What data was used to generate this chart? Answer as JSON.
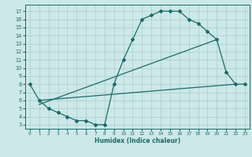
{
  "xlabel": "Humidex (Indice chaleur)",
  "bg_color": "#cce8e8",
  "grid_color": "#aacccc",
  "line_color": "#1a6b6b",
  "curve1_x": [
    0,
    1,
    2,
    3,
    4,
    5,
    6,
    7,
    8,
    9,
    10,
    11,
    12,
    13,
    14,
    15,
    16,
    17,
    18,
    19,
    20,
    21,
    22,
    23
  ],
  "curve1_y": [
    8,
    6,
    5,
    4.5,
    4,
    3.5,
    3.5,
    3,
    3,
    8,
    11,
    13.5,
    16,
    16.5,
    17,
    17,
    17,
    16,
    15.5,
    14.5,
    13.5,
    9.5,
    8,
    8
  ],
  "curve2_x": [
    1,
    22
  ],
  "curve2_y": [
    6,
    8
  ],
  "curve3_x": [
    1,
    20
  ],
  "curve3_y": [
    5.5,
    13.5
  ],
  "xlim": [
    -0.5,
    23.5
  ],
  "ylim": [
    2.5,
    17.8
  ],
  "yticks": [
    3,
    4,
    5,
    6,
    7,
    8,
    9,
    10,
    11,
    12,
    13,
    14,
    15,
    16,
    17
  ],
  "xticks": [
    0,
    1,
    2,
    3,
    4,
    5,
    6,
    7,
    8,
    9,
    10,
    11,
    12,
    13,
    14,
    15,
    16,
    17,
    18,
    19,
    20,
    21,
    22,
    23
  ],
  "xlabel_fontsize": 5.5,
  "tick_fontsize_x": 4.2,
  "tick_fontsize_y": 4.8,
  "linewidth": 0.9,
  "markersize": 2.0
}
